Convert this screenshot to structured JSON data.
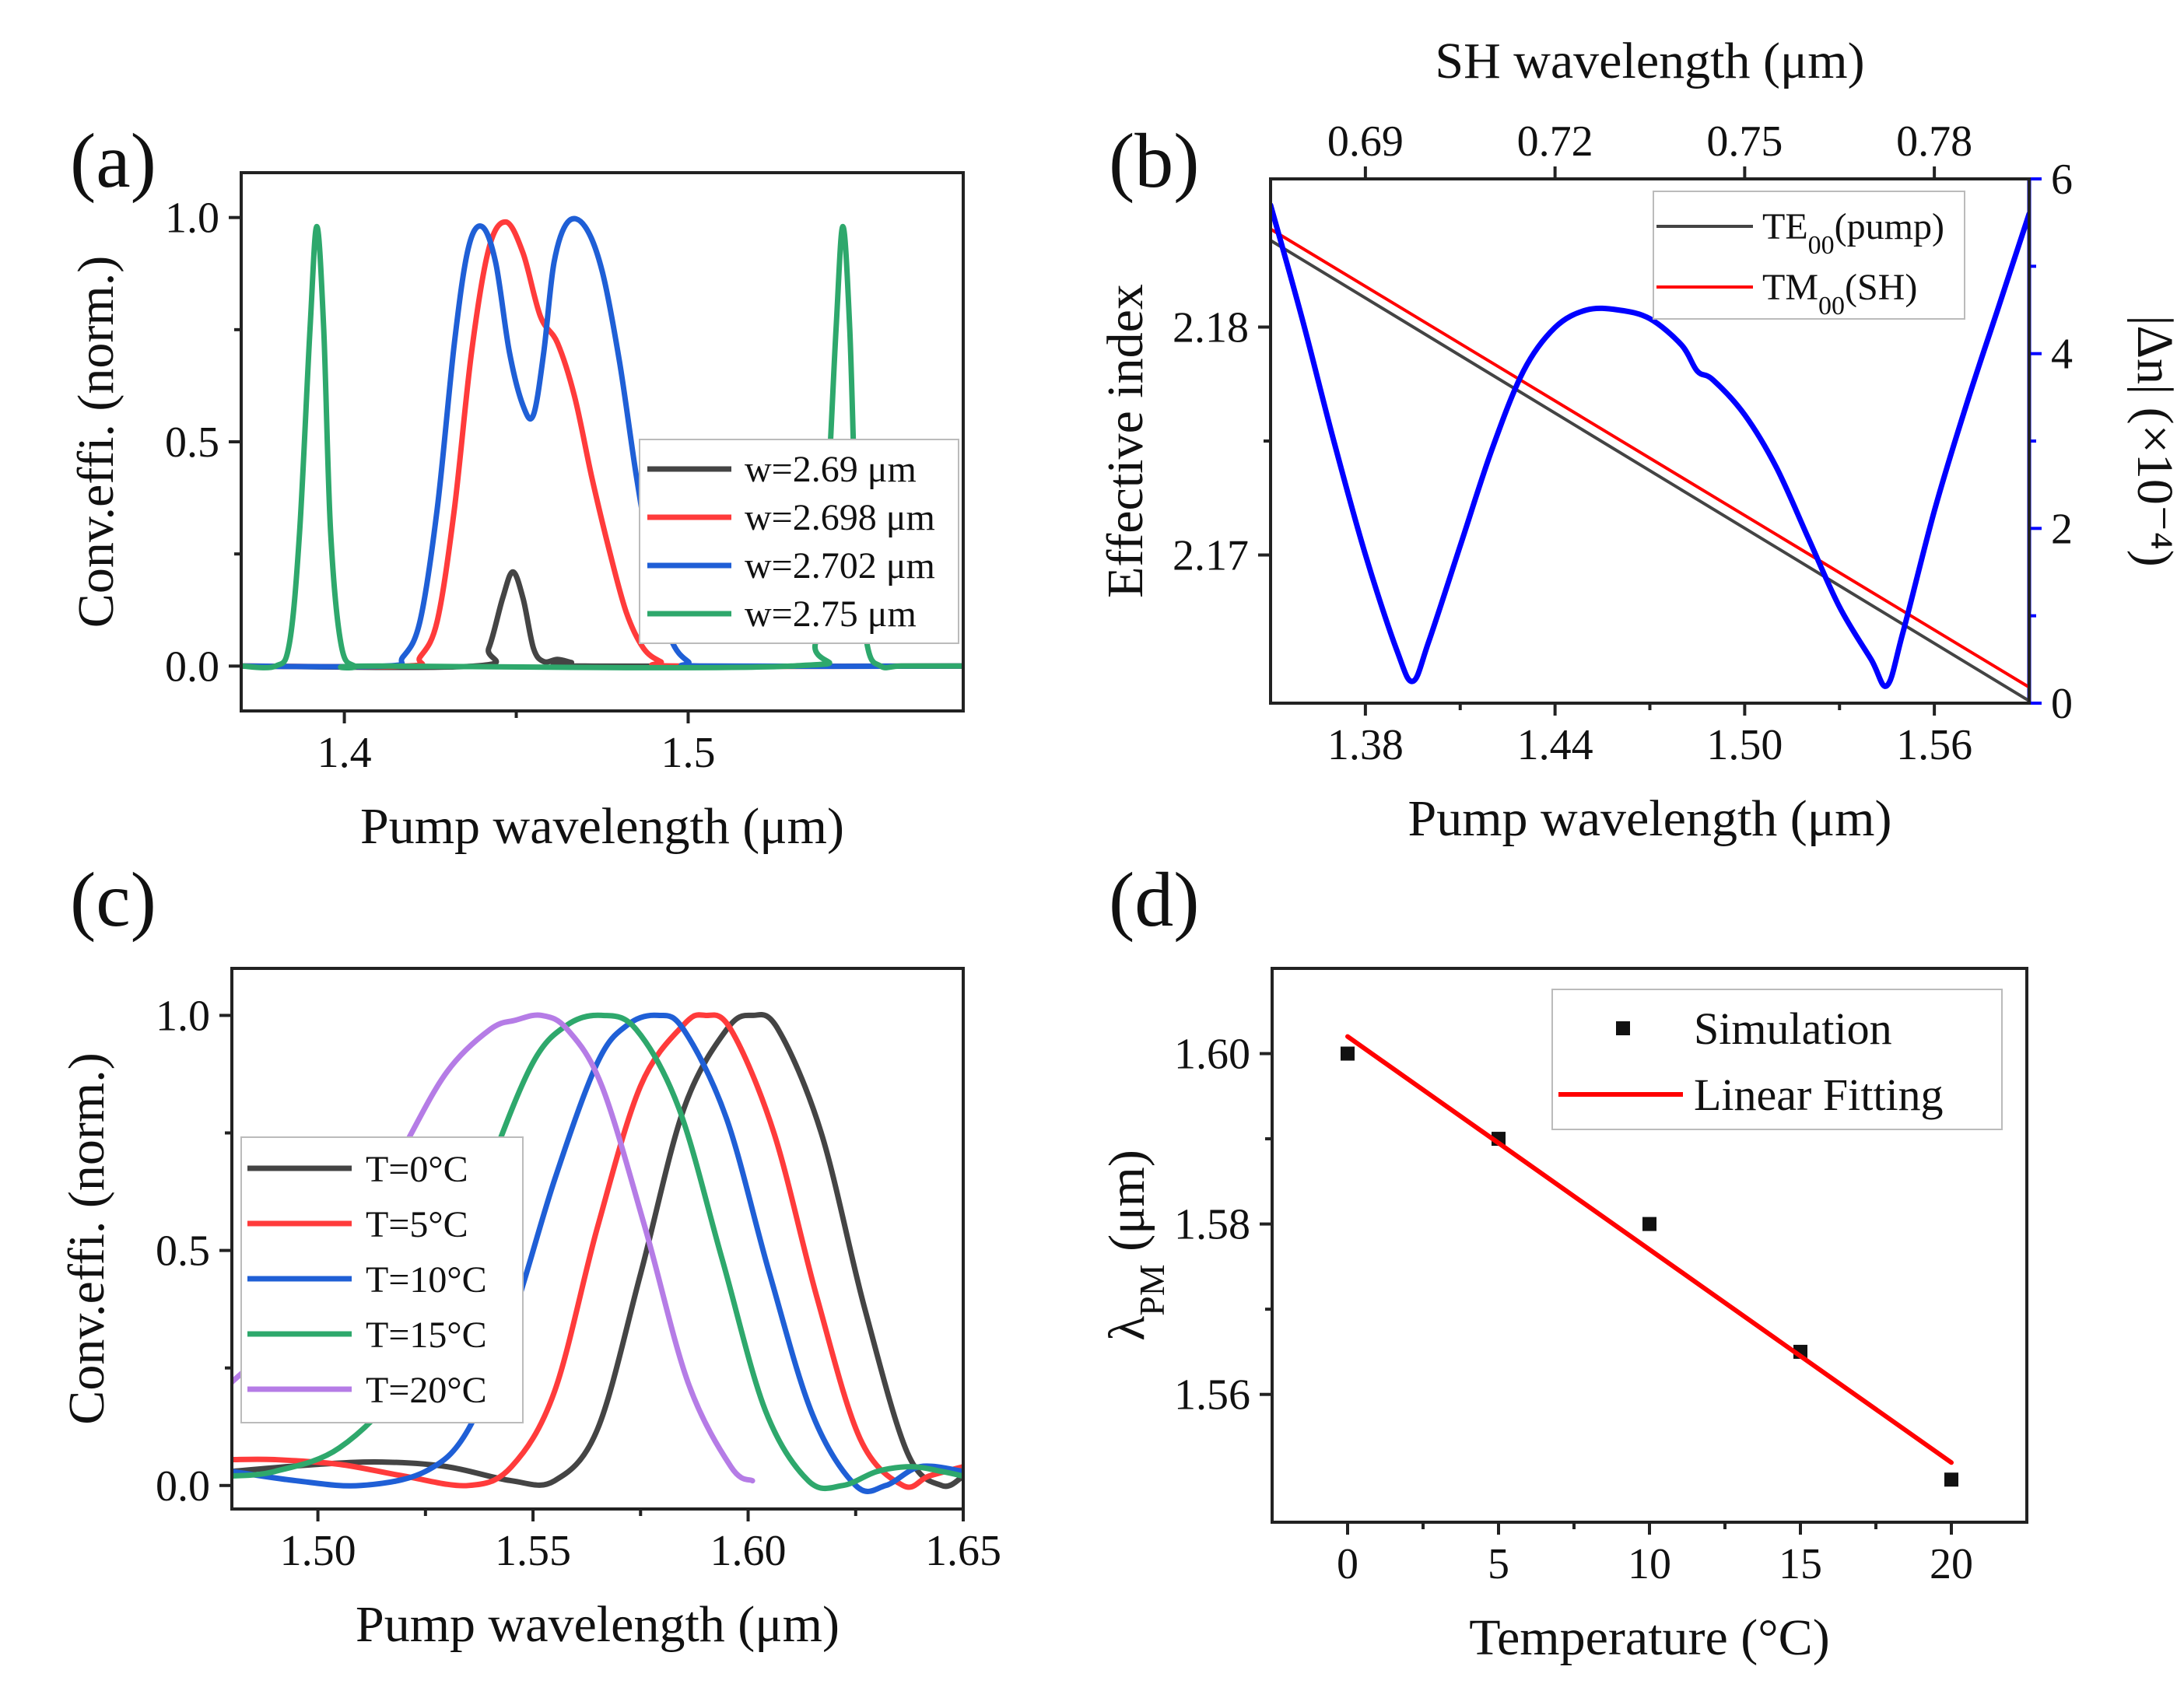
{
  "colors": {
    "black": "#444444",
    "red": "#ff3b3b",
    "blue": "#1f5fd6",
    "green": "#2ea86c",
    "purple": "#b57ce6",
    "right_axis_blue": "#0000ff",
    "fit_red": "#ff0000"
  },
  "chart_data": [
    {
      "panel": "(a)",
      "type": "line",
      "xlabel": "Pump wavelength (μm)",
      "ylabel": "Conv.effi. (norm.)",
      "xlim": [
        1.37,
        1.58
      ],
      "ylim": [
        -0.1,
        1.1
      ],
      "xticks": [
        1.4,
        1.5
      ],
      "xtick_labels": [
        "1.4",
        "1.5"
      ],
      "yticks": [
        0.0,
        0.5,
        1.0
      ],
      "ytick_labels": [
        "0.0",
        "0.5",
        "1.0"
      ],
      "legend_position": "center-right",
      "series": [
        {
          "name": "w=2.69 μm",
          "color": "#444444",
          "x": [
            1.37,
            1.438,
            1.442,
            1.446,
            1.449,
            1.452,
            1.455,
            1.458,
            1.462,
            1.466,
            1.47,
            1.58
          ],
          "y": [
            0,
            0,
            0.04,
            0.15,
            0.21,
            0.15,
            0.04,
            0.01,
            0.015,
            0.008,
            0,
            0
          ]
        },
        {
          "name": "w=2.698 μm",
          "color": "#ff3b3b",
          "x": [
            1.37,
            1.418,
            1.422,
            1.427,
            1.432,
            1.437,
            1.442,
            1.447,
            1.452,
            1.457,
            1.462,
            1.467,
            1.472,
            1.477,
            1.482,
            1.487,
            1.492,
            1.497,
            1.58
          ],
          "y": [
            0,
            0,
            0.02,
            0.1,
            0.35,
            0.7,
            0.93,
            0.99,
            0.92,
            0.78,
            0.72,
            0.6,
            0.42,
            0.26,
            0.12,
            0.04,
            0.01,
            0,
            0
          ]
        },
        {
          "name": "w=2.702 μm",
          "color": "#1f5fd6",
          "x": [
            1.37,
            1.412,
            1.417,
            1.422,
            1.427,
            1.432,
            1.436,
            1.44,
            1.444,
            1.448,
            1.452,
            1.455,
            1.458,
            1.461,
            1.465,
            1.47,
            1.475,
            1.48,
            1.485,
            1.49,
            1.495,
            1.5,
            1.505,
            1.58
          ],
          "y": [
            0,
            0,
            0.02,
            0.1,
            0.35,
            0.72,
            0.93,
            0.98,
            0.9,
            0.7,
            0.58,
            0.56,
            0.7,
            0.9,
            0.99,
            0.98,
            0.88,
            0.68,
            0.42,
            0.2,
            0.06,
            0.01,
            0,
            0
          ]
        },
        {
          "name": "w=2.75 μm",
          "color": "#2ea86c",
          "x": [
            1.37,
            1.38,
            1.384,
            1.387,
            1.39,
            1.392,
            1.394,
            1.396,
            1.399,
            1.403,
            1.41,
            1.53,
            1.537,
            1.54,
            1.543,
            1.545,
            1.547,
            1.549,
            1.552,
            1.556,
            1.562,
            1.58
          ],
          "y": [
            0,
            0,
            0.05,
            0.3,
            0.75,
            0.98,
            0.75,
            0.3,
            0.05,
            0,
            0,
            0,
            0.05,
            0.3,
            0.75,
            0.98,
            0.75,
            0.3,
            0.05,
            0,
            0,
            0
          ]
        }
      ]
    },
    {
      "panel": "(b)",
      "type": "line",
      "xlabel": "Pump wavelength (μm)",
      "ylabel": "Effective index",
      "top_xlabel": "SH wavelength (μm)",
      "right_ylabel": "|Δn|  (×10⁻⁴)",
      "xlim": [
        1.35,
        1.59
      ],
      "ylim": [
        2.1635,
        2.1865
      ],
      "right_ylim": [
        0,
        6
      ],
      "xticks": [
        1.38,
        1.44,
        1.5,
        1.56
      ],
      "xtick_labels": [
        "1.38",
        "1.44",
        "1.50",
        "1.56"
      ],
      "yticks": [
        2.17,
        2.18
      ],
      "ytick_labels": [
        "2.17",
        "2.18"
      ],
      "top_xticks": [
        0.69,
        0.72,
        0.75,
        0.78
      ],
      "top_xtick_labels": [
        "0.69",
        "0.72",
        "0.75",
        "0.78"
      ],
      "right_yticks": [
        0,
        2,
        4,
        6
      ],
      "right_ytick_labels": [
        "0",
        "2",
        "4",
        "6"
      ],
      "legend_position": "top-right",
      "series": [
        {
          "name": "TE",
          "subscript": "00",
          "suffix": "(pump)",
          "axis": "left",
          "color": "#444444",
          "x": [
            1.35,
            1.59
          ],
          "y": [
            2.1838,
            2.1636
          ]
        },
        {
          "name": "TM",
          "subscript": "00",
          "suffix": "(SH)",
          "axis": "left",
          "color": "#ff0000",
          "x": [
            1.35,
            1.59
          ],
          "y": [
            2.1843,
            2.1642
          ]
        },
        {
          "name": "|Δn|",
          "axis": "right",
          "color": "#0000ff",
          "x": [
            1.35,
            1.36,
            1.37,
            1.38,
            1.39,
            1.395,
            1.4,
            1.41,
            1.42,
            1.43,
            1.44,
            1.45,
            1.46,
            1.47,
            1.48,
            1.485,
            1.49,
            1.5,
            1.51,
            1.52,
            1.53,
            1.54,
            1.545,
            1.55,
            1.56,
            1.57,
            1.58,
            1.59
          ],
          "y": [
            5.7,
            4.4,
            3.0,
            1.7,
            0.6,
            0.25,
            0.7,
            1.8,
            2.9,
            3.8,
            4.3,
            4.5,
            4.5,
            4.4,
            4.1,
            3.8,
            3.7,
            3.3,
            2.7,
            1.9,
            1.1,
            0.5,
            0.2,
            0.8,
            2.2,
            3.4,
            4.5,
            5.6
          ]
        }
      ]
    },
    {
      "panel": "(c)",
      "type": "line",
      "xlabel": "Pump wavelength (μm)",
      "ylabel": "Conv.effi. (norm.)",
      "xlim": [
        1.48,
        1.65
      ],
      "ylim": [
        -0.05,
        1.1
      ],
      "xticks": [
        1.5,
        1.55,
        1.6,
        1.65
      ],
      "xtick_labels": [
        "1.50",
        "1.55",
        "1.60",
        "1.65"
      ],
      "yticks": [
        0.0,
        0.5,
        1.0
      ],
      "ytick_labels": [
        "0.0",
        "0.5",
        "1.0"
      ],
      "legend_position": "center-left",
      "series": [
        {
          "name": "T=0°C",
          "color": "#444444",
          "x": [
            1.48,
            1.5,
            1.515,
            1.53,
            1.545,
            1.555,
            1.565,
            1.575,
            1.585,
            1.595,
            1.601,
            1.607,
            1.617,
            1.627,
            1.637,
            1.645,
            1.65
          ],
          "y": [
            0.03,
            0.045,
            0.05,
            0.04,
            0.01,
            0.01,
            0.12,
            0.45,
            0.8,
            0.97,
            1.0,
            0.97,
            0.75,
            0.38,
            0.07,
            0.0,
            0.02
          ]
        },
        {
          "name": "T=5°C",
          "color": "#ff3b3b",
          "x": [
            1.48,
            1.49,
            1.505,
            1.52,
            1.535,
            1.545,
            1.555,
            1.565,
            1.575,
            1.585,
            1.59,
            1.596,
            1.606,
            1.616,
            1.626,
            1.636,
            1.642,
            1.65
          ],
          "y": [
            0.055,
            0.055,
            0.045,
            0.02,
            0.0,
            0.04,
            0.2,
            0.55,
            0.85,
            0.98,
            1.0,
            0.97,
            0.75,
            0.4,
            0.1,
            0.0,
            0.02,
            0.04
          ]
        },
        {
          "name": "T=10°C",
          "color": "#1f5fd6",
          "x": [
            1.48,
            1.495,
            1.51,
            1.525,
            1.535,
            1.545,
            1.555,
            1.565,
            1.572,
            1.579,
            1.585,
            1.595,
            1.605,
            1.615,
            1.625,
            1.632,
            1.64,
            1.65
          ],
          "y": [
            0.03,
            0.01,
            0.0,
            0.03,
            0.12,
            0.35,
            0.65,
            0.9,
            0.98,
            1.0,
            0.97,
            0.78,
            0.45,
            0.15,
            0.0,
            0.0,
            0.04,
            0.03
          ]
        },
        {
          "name": "T=15°C",
          "color": "#2ea86c",
          "x": [
            1.48,
            1.49,
            1.505,
            1.52,
            1.53,
            1.54,
            1.55,
            1.558,
            1.566,
            1.574,
            1.584,
            1.594,
            1.604,
            1.614,
            1.622,
            1.63,
            1.638,
            1.645,
            1.65
          ],
          "y": [
            0.02,
            0.03,
            0.08,
            0.22,
            0.42,
            0.68,
            0.9,
            0.98,
            1.0,
            0.97,
            0.8,
            0.48,
            0.16,
            0.01,
            0.0,
            0.03,
            0.04,
            0.03,
            0.02
          ]
        },
        {
          "name": "T=20°C",
          "color": "#b57ce6",
          "x": [
            1.48,
            1.495,
            1.51,
            1.52,
            1.53,
            1.54,
            1.546,
            1.552,
            1.558,
            1.566,
            1.576,
            1.586,
            1.596,
            1.601
          ],
          "y": [
            0.22,
            0.35,
            0.55,
            0.72,
            0.88,
            0.97,
            0.99,
            1.0,
            0.97,
            0.85,
            0.55,
            0.22,
            0.04,
            0.01
          ]
        }
      ]
    },
    {
      "panel": "(d)",
      "type": "scatter",
      "xlabel": "Temperature (°C)",
      "ylabel_symbol": "λ",
      "ylabel_sub": "PM",
      "ylabel_unit": " (μm)",
      "xlim": [
        -2.5,
        22.5
      ],
      "ylim": [
        1.545,
        1.61
      ],
      "xticks": [
        0,
        5,
        10,
        15,
        20
      ],
      "xtick_labels": [
        "0",
        "5",
        "10",
        "15",
        "20"
      ],
      "yticks": [
        1.56,
        1.58,
        1.6
      ],
      "ytick_labels": [
        "1.56",
        "1.58",
        "1.60"
      ],
      "legend_position": "top-right",
      "series": [
        {
          "name": "Simulation",
          "kind": "scatter",
          "color": "#111111",
          "x": [
            0,
            5,
            10,
            15,
            20
          ],
          "y": [
            1.6,
            1.59,
            1.58,
            1.565,
            1.55
          ]
        },
        {
          "name": "Linear Fitting",
          "kind": "line",
          "color": "#ff0000",
          "x": [
            0,
            20
          ],
          "y": [
            1.602,
            1.552
          ]
        }
      ]
    }
  ]
}
